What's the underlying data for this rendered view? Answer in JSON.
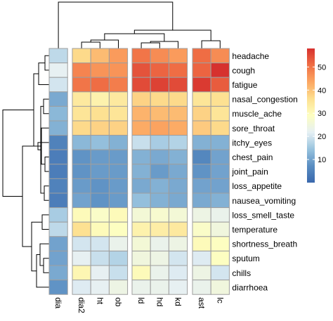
{
  "chart_data": {
    "type": "heatmap",
    "rows": [
      "headache",
      "cough",
      "fatigue",
      "nasal_congestion",
      "muscle_ache",
      "sore_throat",
      "itchy_eyes",
      "chest_pain",
      "joint_pain",
      "loss_appetite",
      "nausea_vomiting",
      "loss_smell_taste",
      "temperature",
      "shortness_breath",
      "sputum",
      "chills",
      "diarrhoea"
    ],
    "columns": [
      "dia",
      "dia2",
      "ht",
      "ob",
      "ld",
      "hd",
      "kd",
      "ast",
      "lc"
    ],
    "column_groups": [
      [
        "dia"
      ],
      [
        "dia2",
        "ht",
        "ob"
      ],
      [
        "ld",
        "hd",
        "kd"
      ],
      [
        "ast",
        "lc"
      ]
    ],
    "values": [
      [
        18,
        37,
        41,
        45,
        50,
        47,
        45,
        51,
        47
      ],
      [
        22,
        48,
        46,
        46,
        54,
        52,
        51,
        52,
        58
      ],
      [
        20,
        50,
        51,
        49,
        55,
        56,
        55,
        57,
        53
      ],
      [
        11,
        34,
        32,
        34,
        38,
        37,
        37,
        35,
        36
      ],
      [
        13,
        35,
        36,
        35,
        42,
        41,
        41,
        38,
        35
      ],
      [
        12,
        37,
        38,
        38,
        43,
        44,
        43,
        39,
        37
      ],
      [
        5,
        13,
        14,
        12,
        19,
        16,
        17,
        12,
        12
      ],
      [
        4,
        8,
        9,
        9,
        12,
        11,
        12,
        6,
        10
      ],
      [
        4,
        8,
        9,
        9,
        12,
        9,
        11,
        8,
        10
      ],
      [
        5,
        9,
        8,
        9,
        11,
        12,
        11,
        10,
        10
      ],
      [
        4,
        10,
        8,
        9,
        14,
        12,
        11,
        11,
        12
      ],
      [
        16,
        30,
        28,
        30,
        26,
        27,
        26,
        24,
        23
      ],
      [
        18,
        36,
        30,
        29,
        32,
        33,
        34,
        28,
        25
      ],
      [
        10,
        20,
        20,
        23,
        26,
        23,
        24,
        30,
        29
      ],
      [
        10,
        22,
        19,
        17,
        25,
        24,
        20,
        21,
        29
      ],
      [
        11,
        31,
        22,
        19,
        30,
        23,
        21,
        24,
        20
      ],
      [
        8,
        21,
        22,
        24,
        23,
        23,
        22,
        23,
        25
      ]
    ],
    "legend": {
      "min": 0,
      "max": 58,
      "ticks": [
        10,
        20,
        30,
        40,
        50
      ]
    },
    "colors": [
      "#3a68ad",
      "#5a8ec2",
      "#98c3de",
      "#e6f0f4",
      "#fdfec1",
      "#fde090",
      "#fca762",
      "#f06f45",
      "#d6312e"
    ],
    "row_dendrogram": true,
    "column_dendrogram": true
  }
}
